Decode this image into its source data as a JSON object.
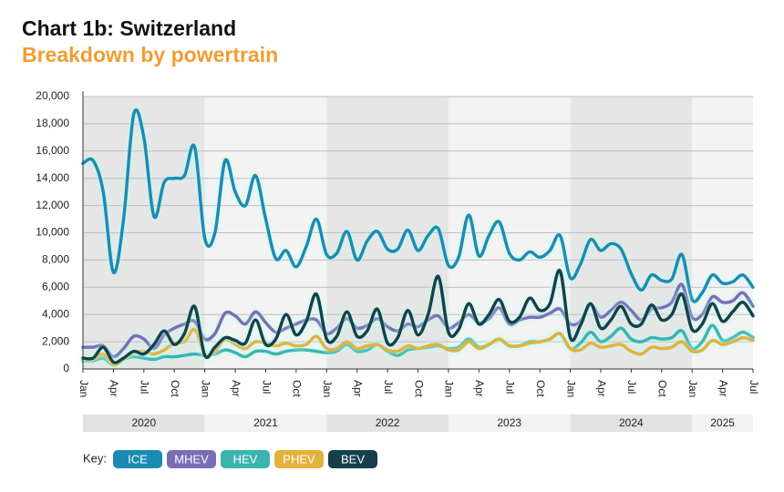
{
  "chart_data": {
    "type": "line",
    "title": "Chart 1b: Switzerland",
    "subtitle": "Breakdown by powertrain",
    "legend_title": "Key:",
    "categories": [
      "Jan",
      null,
      null,
      "Apr",
      null,
      null,
      "Jul",
      null,
      null,
      "Oct",
      null,
      null,
      "Jan",
      null,
      null,
      "Apr",
      null,
      null,
      "Jul",
      null,
      null,
      "Oct",
      null,
      null,
      "Jan",
      null,
      null,
      "Apr",
      null,
      null,
      "Jul",
      null,
      null,
      "Oct",
      null,
      null,
      "Jan",
      null,
      null,
      "Apr",
      null,
      null,
      "Jul",
      null,
      null,
      "Oct",
      null,
      null,
      "Jan",
      null,
      null,
      "Apr",
      null,
      null,
      "Jul",
      null,
      null,
      "Oct",
      null,
      null,
      "Jan",
      null,
      null,
      "Apr",
      null,
      null,
      "Jul"
    ],
    "year_labels": [
      "2020",
      "2021",
      "2022",
      "2023",
      "2024",
      "2025"
    ],
    "ylim": [
      0,
      20000
    ],
    "yticks": [
      0,
      {
        "value": 2000,
        "label": "2,000"
      },
      {
        "value": 4000,
        "label": "4,000"
      },
      {
        "value": 6000,
        "label": "6,000"
      },
      {
        "value": 8000,
        "label": "8,000"
      },
      {
        "value": 10000,
        "label": "10,000"
      },
      {
        "value": 12000,
        "label": "12,000"
      },
      {
        "value": 14000,
        "label": "14,000"
      },
      {
        "value": 16000,
        "label": "16,000"
      },
      {
        "value": 18000,
        "label": "18,000"
      },
      {
        "value": 20000,
        "label": "20,000"
      }
    ],
    "grid": true,
    "series": [
      {
        "name": "ICE",
        "color": "#1a8bb3",
        "values": [
          15100,
          15300,
          13000,
          7100,
          11000,
          18700,
          17000,
          11200,
          13700,
          14000,
          14200,
          16300,
          9600,
          10000,
          15300,
          13000,
          12000,
          14200,
          11000,
          8100,
          8700,
          7500,
          9000,
          11000,
          8400,
          8500,
          10100,
          8000,
          9400,
          10100,
          8800,
          8800,
          10200,
          8700,
          9800,
          10300,
          7600,
          8200,
          11300,
          8300,
          9800,
          10800,
          8500,
          8000,
          8600,
          8200,
          8700,
          9800,
          6700,
          7700,
          9500,
          8700,
          9200,
          8800,
          7000,
          5800,
          6900,
          6500,
          6600,
          8400,
          5100,
          5600,
          6900,
          6300,
          6400,
          6900,
          6000
        ]
      },
      {
        "name": "MHEV",
        "color": "#7b6db5",
        "values": [
          1600,
          1600,
          1700,
          900,
          1500,
          2400,
          2200,
          1500,
          2500,
          3000,
          3300,
          3500,
          2200,
          2600,
          4100,
          3900,
          3300,
          4200,
          3400,
          2700,
          3000,
          3300,
          3600,
          3600,
          2600,
          3000,
          3700,
          3000,
          3200,
          3700,
          3100,
          2800,
          3300,
          3100,
          3600,
          3900,
          3000,
          3400,
          4000,
          3400,
          3700,
          4500,
          3300,
          3600,
          3800,
          3800,
          4100,
          4400,
          3300,
          3500,
          4700,
          3800,
          4300,
          4900,
          4300,
          3600,
          4400,
          4500,
          4900,
          6200,
          3800,
          4000,
          5300,
          4900,
          5000,
          5600,
          4600
        ]
      },
      {
        "name": "HEV",
        "color": "#3bb4b0",
        "values": [
          600,
          600,
          800,
          300,
          700,
          900,
          800,
          700,
          900,
          900,
          1000,
          1100,
          1000,
          1100,
          1400,
          1200,
          900,
          1300,
          1300,
          1100,
          1300,
          1400,
          1400,
          1300,
          1200,
          1300,
          1800,
          1300,
          1400,
          1800,
          1300,
          1000,
          1400,
          1500,
          1600,
          1700,
          1500,
          1600,
          2200,
          1600,
          1800,
          2200,
          1700,
          1700,
          2000,
          2000,
          2200,
          2600,
          1500,
          1900,
          2700,
          2000,
          2400,
          3000,
          2200,
          2000,
          2300,
          2200,
          2300,
          2800,
          1500,
          2000,
          3200,
          2100,
          2300,
          2700,
          2300
        ]
      },
      {
        "name": "PHEV",
        "color": "#e3b23c",
        "values": [
          700,
          700,
          1100,
          300,
          700,
          1200,
          1300,
          1100,
          1400,
          1900,
          2000,
          2900,
          1100,
          1300,
          2200,
          1800,
          1500,
          2000,
          1900,
          1700,
          1900,
          1700,
          1800,
          2400,
          1500,
          1500,
          2000,
          1500,
          1700,
          1800,
          1400,
          1300,
          1700,
          1500,
          1700,
          1800,
          1400,
          1400,
          2000,
          1500,
          1800,
          2200,
          1700,
          1700,
          1900,
          2000,
          2200,
          2600,
          1500,
          1400,
          1900,
          1600,
          1700,
          1800,
          1300,
          1100,
          1600,
          1500,
          1600,
          2000,
          1300,
          1400,
          2100,
          1800,
          2000,
          2300,
          2100
        ]
      },
      {
        "name": "BEV",
        "color": "#163f4a",
        "values": [
          800,
          800,
          1600,
          500,
          800,
          1300,
          1100,
          1800,
          2800,
          1800,
          2600,
          4600,
          1000,
          1600,
          2300,
          2100,
          1900,
          3600,
          1800,
          2200,
          4000,
          2500,
          3500,
          5500,
          2200,
          2400,
          4200,
          2400,
          2800,
          4400,
          1900,
          2300,
          4300,
          2500,
          4000,
          6800,
          2700,
          2900,
          4800,
          3300,
          4000,
          5100,
          3500,
          3800,
          5200,
          4300,
          4800,
          7200,
          2300,
          3200,
          4800,
          3000,
          3600,
          4600,
          3300,
          3300,
          4700,
          3600,
          4000,
          5500,
          2900,
          3300,
          4800,
          3500,
          4200,
          4900,
          3900
        ]
      }
    ]
  }
}
